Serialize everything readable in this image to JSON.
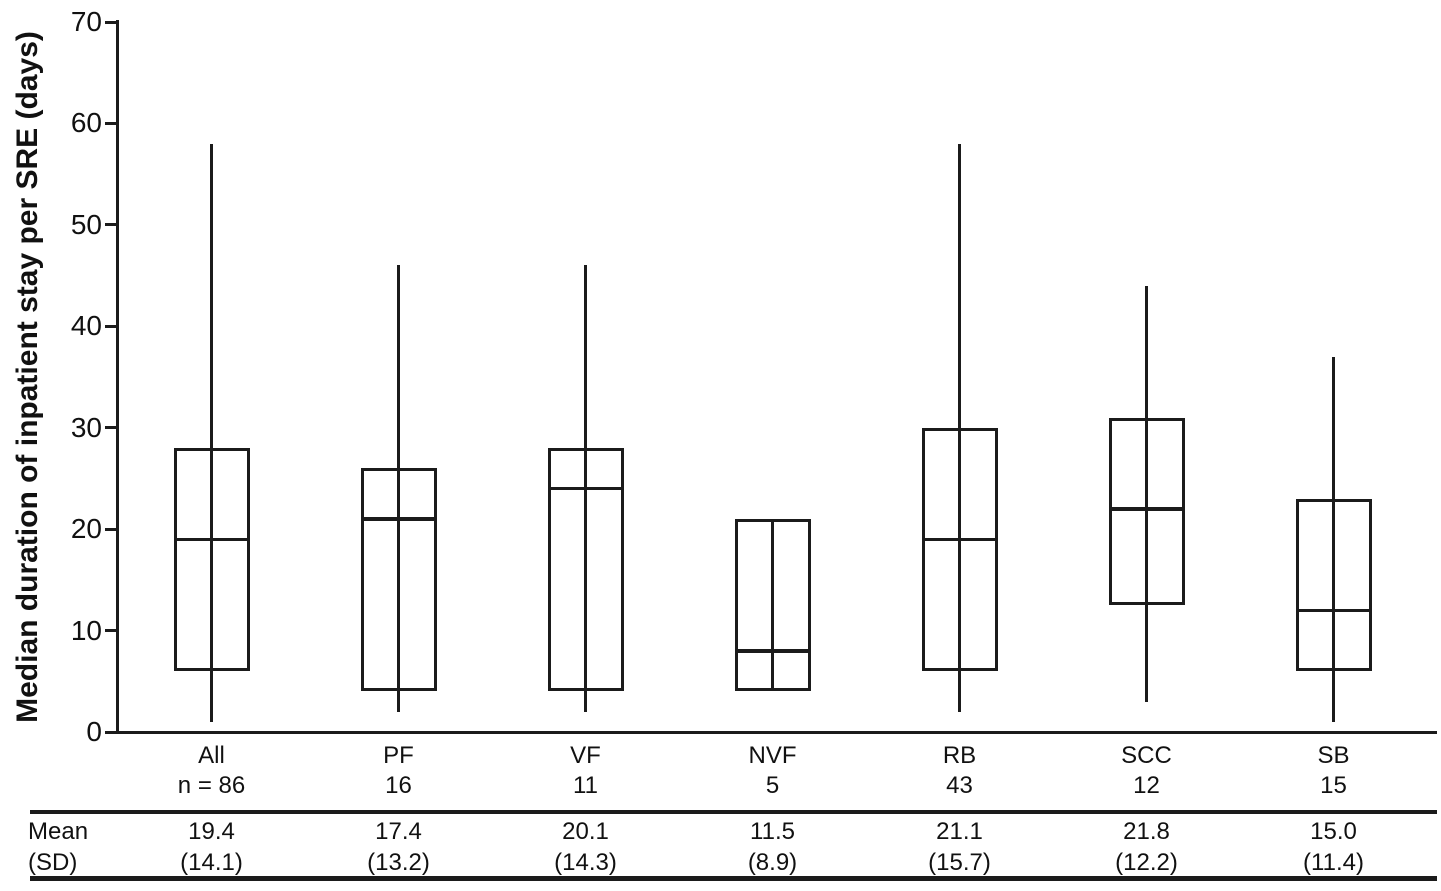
{
  "chart_data": {
    "type": "boxplot",
    "title": "",
    "ylabel": "Median duration of inpatient stay per SRE (days)",
    "xlabel": "",
    "ylim": [
      0,
      70
    ],
    "yticks": [
      70,
      60,
      50,
      40,
      30,
      20,
      10,
      0
    ],
    "grid": false,
    "legend": "none",
    "box_fill": "transparent",
    "stroke_color": "#1b1b1b",
    "background": "#ffffff",
    "groups": [
      {
        "label": "All",
        "n_label": "n = 86",
        "whisker_min": 1,
        "q1": 6,
        "median": 19,
        "q3": 28,
        "whisker_max": 58,
        "mean": "19.4",
        "sd": "(14.1)"
      },
      {
        "label": "PF",
        "n_label": "16",
        "whisker_min": 2,
        "q1": 4,
        "median": 21,
        "q3": 26,
        "whisker_max": 46,
        "mean": "17.4",
        "sd": "(13.2)"
      },
      {
        "label": "VF",
        "n_label": "11",
        "whisker_min": 2,
        "q1": 4,
        "median": 24,
        "q3": 28,
        "whisker_max": 46,
        "mean": "20.1",
        "sd": "(14.3)"
      },
      {
        "label": "NVF",
        "n_label": "5",
        "whisker_min": 4,
        "q1": 4,
        "median": 8,
        "q3": 21,
        "whisker_max": 21,
        "mean": "11.5",
        "sd": "(8.9)"
      },
      {
        "label": "RB",
        "n_label": "43",
        "whisker_min": 2,
        "q1": 6,
        "median": 19,
        "q3": 30,
        "whisker_max": 58,
        "mean": "21.1",
        "sd": "(15.7)"
      },
      {
        "label": "SCC",
        "n_label": "12",
        "whisker_min": 3,
        "q1": 12.5,
        "median": 22,
        "q3": 31,
        "whisker_max": 44,
        "mean": "21.8",
        "sd": "(12.2)"
      },
      {
        "label": "SB",
        "n_label": "15",
        "whisker_min": 1,
        "q1": 6,
        "median": 12,
        "q3": 23,
        "whisker_max": 37,
        "mean": "15.0",
        "sd": "(11.4)"
      }
    ],
    "table": {
      "row_labels": [
        "Mean",
        "(SD)"
      ]
    }
  }
}
